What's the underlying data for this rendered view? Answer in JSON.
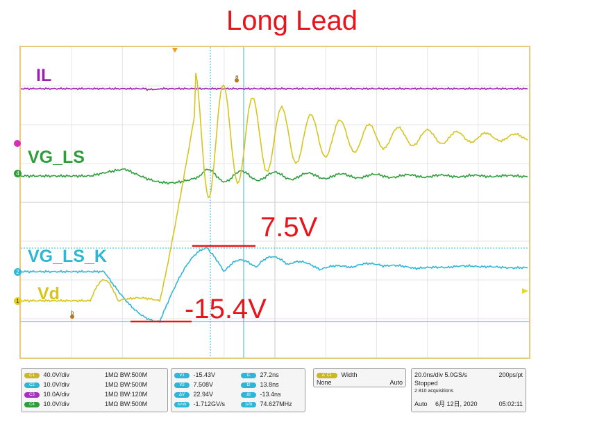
{
  "title": "Long Lead",
  "traces": {
    "il": {
      "label": "IL",
      "color": "#9b1fb0"
    },
    "vg_ls": {
      "label": "VG_LS",
      "color": "#2e9e3a"
    },
    "vg_ls_k": {
      "label": "VG_LS_K",
      "color": "#2fb6d6"
    },
    "vd": {
      "label": "Vd",
      "color": "#d7c41f"
    }
  },
  "annotations": {
    "peak": "7.5V",
    "trough": "-15.4V"
  },
  "markers": {
    "a": "a",
    "b": "b",
    "ch1": "1",
    "ch2": "2",
    "ch4": "4"
  },
  "channels": [
    {
      "id": "C1",
      "scale": "40.0V/div",
      "imp": "1MΩ",
      "bw": "BW:500M",
      "color": "#c9b72a"
    },
    {
      "id": "C2",
      "scale": "10.0V/div",
      "imp": "1MΩ",
      "bw": "BW:500M",
      "color": "#2fb6d6"
    },
    {
      "id": "C3",
      "scale": "10.0A/div",
      "imp": "1MΩ",
      "bw": "BW:120M",
      "color": "#a62fc0"
    },
    {
      "id": "C4",
      "scale": "10.0V/div",
      "imp": "1MΩ",
      "bw": "BW:500M",
      "color": "#2e9e3a"
    }
  ],
  "measurements": {
    "v1": {
      "tag": "V1",
      "value": "-15.43V"
    },
    "v2": {
      "tag": "V2",
      "value": "7.508V"
    },
    "dv": {
      "tag": "ΔV",
      "value": "22.94V"
    },
    "dvdt": {
      "tag": "ΔV/Δt",
      "value": "-1.712GV/s"
    },
    "t1": {
      "tag": "t1",
      "value": "27.2ns"
    },
    "t2": {
      "tag": "t2",
      "value": "13.8ns"
    },
    "dt": {
      "tag": "Δt",
      "value": "-13.4ns"
    },
    "inv_dt": {
      "tag": "1/Δt",
      "value": "74.627MHz"
    }
  },
  "trigger": {
    "source": "A' C1",
    "type": "Width",
    "slope": "None",
    "mode": "Auto"
  },
  "timebase": {
    "scale": "20.0ns/div 5.0GS/s",
    "pts": "200ps/pt",
    "state": "Stopped",
    "acq": "2 810 acquisitions",
    "mode": "Auto",
    "date": "6月 12日, 2020",
    "time": "05:02:11"
  }
}
